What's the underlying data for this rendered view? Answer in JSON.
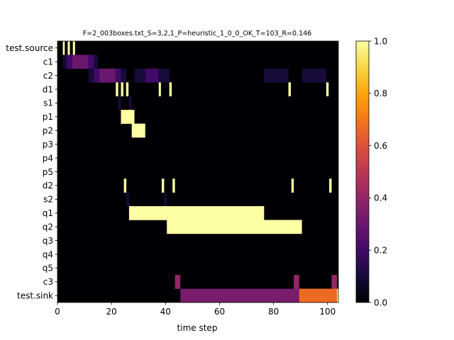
{
  "chart_data": {
    "type": "heatmap",
    "title": "F=2_003boxes.txt_S=3,2,1_P=heuristic_1_0_0_OK_T=103_R=0.146",
    "xlabel": "time step",
    "ylabel": "",
    "xlim": [
      0,
      104
    ],
    "x_ticks": [
      0,
      20,
      40,
      60,
      80,
      100
    ],
    "x_tick_labels": [
      "0",
      "20",
      "40",
      "60",
      "80",
      "100"
    ],
    "rows": [
      "test.source",
      "c1",
      "c2",
      "d1",
      "s1",
      "p1",
      "p2",
      "p3",
      "p4",
      "p5",
      "d2",
      "s2",
      "q1",
      "q2",
      "q3",
      "q4",
      "q5",
      "c3",
      "test.sink"
    ],
    "colormap": "inferno",
    "colorbar": {
      "range": [
        0,
        1
      ],
      "ticks": [
        0.0,
        0.2,
        0.4,
        0.6,
        0.8,
        1.0
      ],
      "tick_labels": [
        "0.0",
        "0.2",
        "0.4",
        "0.6",
        "0.8",
        "1.0"
      ]
    },
    "background_value": 0,
    "segments": [
      {
        "row": "test.source",
        "start": 2,
        "end": 2.7,
        "value": 1.0
      },
      {
        "row": "test.source",
        "start": 3.8,
        "end": 4.6,
        "value": 1.0
      },
      {
        "row": "test.source",
        "start": 5.7,
        "end": 6.5,
        "value": 1.0
      },
      {
        "row": "c1",
        "start": 2,
        "end": 3.5,
        "value": 0.1
      },
      {
        "row": "c1",
        "start": 3.5,
        "end": 5.5,
        "value": 0.2
      },
      {
        "row": "c1",
        "start": 5.5,
        "end": 11.5,
        "value": 0.3
      },
      {
        "row": "c1",
        "start": 11.5,
        "end": 13.5,
        "value": 0.2
      },
      {
        "row": "c1",
        "start": 13.5,
        "end": 15,
        "value": 0.1
      },
      {
        "row": "c2",
        "start": 11.5,
        "end": 13.5,
        "value": 0.1
      },
      {
        "row": "c2",
        "start": 13.5,
        "end": 15.5,
        "value": 0.2
      },
      {
        "row": "c2",
        "start": 15.5,
        "end": 21.5,
        "value": 0.3
      },
      {
        "row": "c2",
        "start": 21.5,
        "end": 23.5,
        "value": 0.2
      },
      {
        "row": "c2",
        "start": 23.5,
        "end": 25.5,
        "value": 0.1
      },
      {
        "row": "c2",
        "start": 28.5,
        "end": 32.5,
        "value": 0.1
      },
      {
        "row": "c2",
        "start": 32.5,
        "end": 37.5,
        "value": 0.2
      },
      {
        "row": "c2",
        "start": 37.5,
        "end": 41.5,
        "value": 0.1
      },
      {
        "row": "c2",
        "start": 76.5,
        "end": 85.5,
        "value": 0.1
      },
      {
        "row": "c2",
        "start": 90.5,
        "end": 99.5,
        "value": 0.1
      },
      {
        "row": "d1",
        "start": 21.6,
        "end": 22.5,
        "value": 1.0
      },
      {
        "row": "d1",
        "start": 23.5,
        "end": 24.4,
        "value": 1.0
      },
      {
        "row": "d1",
        "start": 25.4,
        "end": 26.3,
        "value": 1.0
      },
      {
        "row": "d1",
        "start": 37.5,
        "end": 38.3,
        "value": 1.0
      },
      {
        "row": "d1",
        "start": 41.4,
        "end": 42.3,
        "value": 1.0
      },
      {
        "row": "d1",
        "start": 85.5,
        "end": 86.4,
        "value": 1.0
      },
      {
        "row": "d1",
        "start": 99.5,
        "end": 100.4,
        "value": 1.0
      },
      {
        "row": "s1",
        "start": 22.5,
        "end": 23.5,
        "value": 0.1
      },
      {
        "row": "s1",
        "start": 26.5,
        "end": 27.5,
        "value": 0.1
      },
      {
        "row": "p1",
        "start": 23.5,
        "end": 28.5,
        "value": 1.0
      },
      {
        "row": "p2",
        "start": 27.5,
        "end": 32.5,
        "value": 1.0
      },
      {
        "row": "d2",
        "start": 24.6,
        "end": 25.5,
        "value": 1.0
      },
      {
        "row": "d2",
        "start": 38.6,
        "end": 39.5,
        "value": 1.0
      },
      {
        "row": "d2",
        "start": 42.6,
        "end": 43.5,
        "value": 1.0
      },
      {
        "row": "d2",
        "start": 86.6,
        "end": 87.5,
        "value": 1.0
      },
      {
        "row": "d2",
        "start": 100.6,
        "end": 101.5,
        "value": 1.0
      },
      {
        "row": "s2",
        "start": 25.5,
        "end": 26.5,
        "value": 0.1
      },
      {
        "row": "s2",
        "start": 39.5,
        "end": 40.5,
        "value": 0.1
      },
      {
        "row": "q1",
        "start": 26.5,
        "end": 76.5,
        "value": 1.0
      },
      {
        "row": "q2",
        "start": 40.5,
        "end": 90.5,
        "value": 1.0
      },
      {
        "row": "c3",
        "start": 43.5,
        "end": 45.5,
        "value": 0.4
      },
      {
        "row": "c3",
        "start": 87.5,
        "end": 89.5,
        "value": 0.4
      },
      {
        "row": "c3",
        "start": 101.5,
        "end": 103.5,
        "value": 0.4
      },
      {
        "row": "test.sink",
        "start": 45.5,
        "end": 89.5,
        "value": 0.333
      },
      {
        "row": "test.sink",
        "start": 89.5,
        "end": 103.5,
        "value": 0.667
      },
      {
        "row": "test.sink",
        "start": 103.5,
        "end": 104.5,
        "value": 1.0
      }
    ]
  }
}
